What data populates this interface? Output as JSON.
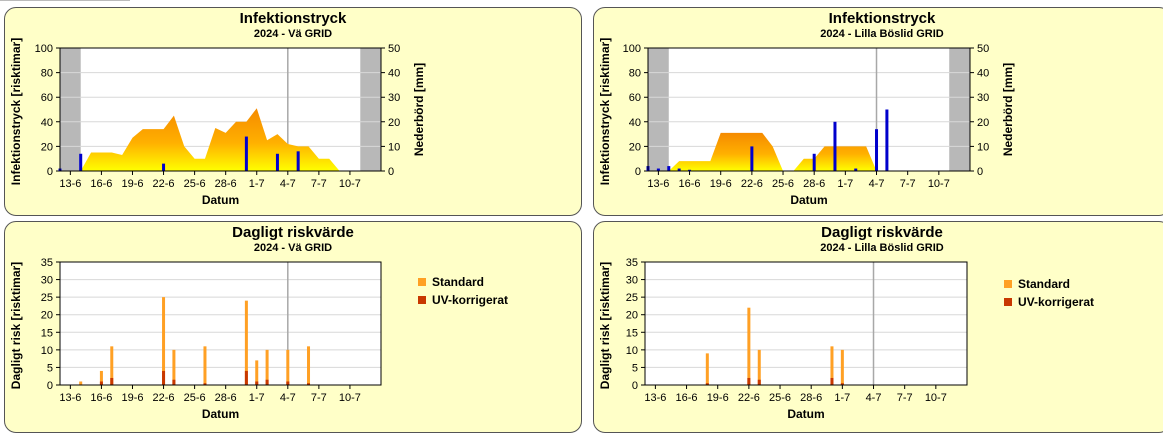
{
  "colors": {
    "panel_bg": "#ffffc8",
    "plot_bg": "#ffffff",
    "grid": "#d8d8d8",
    "dormant": "#b8b8b8",
    "marker": "#a8a8a8",
    "precip": "#0000cc",
    "area_top": "#f58a00",
    "area_bottom": "#ffff00",
    "standard": "#ffa024",
    "uv": "#c83800"
  },
  "charts": [
    {
      "id": "infek-va",
      "title": "Infektionstryck",
      "subtitle": "2024 - Vä GRID",
      "xlabel": "Datum",
      "ylabel": "Infektionstryck [risktimar]",
      "y2label": "Nederbörd [mm]"
    },
    {
      "id": "infek-lilla",
      "title": "Infektionstryck",
      "subtitle": "2024 - Lilla Böslid GRID",
      "xlabel": "Datum",
      "ylabel": "Infektionstryck [risktimar]",
      "y2label": "Nederbörd [mm]"
    },
    {
      "id": "risk-va",
      "title": "Dagligt riskvärde",
      "subtitle": "2024 - Vä GRID",
      "xlabel": "Datum",
      "ylabel": "Dagligt risk [risktimar]",
      "legend": [
        "Standard",
        "UV-korrigerat"
      ]
    },
    {
      "id": "risk-lilla",
      "title": "Dagligt riskvärde",
      "subtitle": "2024 - Lilla Böslid GRID",
      "xlabel": "Datum",
      "ylabel": "Dagligt risk [risktimar]",
      "legend": [
        "Standard",
        "UV-korrigerat"
      ]
    }
  ],
  "chart_data": [
    {
      "type": "area",
      "title": "Infektionstryck",
      "subtitle": "2024 - Vä GRID",
      "xlabel": "Datum",
      "ylabel": "Infektionstryck [risktimar]",
      "y2label": "Nederbörd [mm]",
      "x_start": "2024-06-12",
      "x_end": "2024-07-13",
      "x_ticks": [
        "13-6",
        "16-6",
        "19-6",
        "22-6",
        "25-6",
        "28-6",
        "1-7",
        "4-7",
        "7-7",
        "10-7"
      ],
      "ylim": [
        0,
        100
      ],
      "y_ticks": [
        0,
        20,
        40,
        60,
        80,
        100
      ],
      "y2lim": [
        0,
        50
      ],
      "y2_ticks": [
        0,
        10,
        20,
        30,
        40,
        50
      ],
      "grid": true,
      "dormant_periods": [
        [
          "2024-06-12",
          "2024-06-14"
        ],
        [
          "2024-07-11",
          "2024-07-13"
        ]
      ],
      "today_marker": "2024-07-04",
      "infection_pressure": {
        "dates": [
          "2024-06-14",
          "2024-06-15",
          "2024-06-17",
          "2024-06-18",
          "2024-06-19",
          "2024-06-20",
          "2024-06-21",
          "2024-06-22",
          "2024-06-23",
          "2024-06-24",
          "2024-06-25",
          "2024-06-26",
          "2024-06-27",
          "2024-06-28",
          "2024-06-29",
          "2024-06-30",
          "2024-07-01",
          "2024-07-02",
          "2024-07-03",
          "2024-07-04",
          "2024-07-05",
          "2024-07-06",
          "2024-07-07",
          "2024-07-08",
          "2024-07-09"
        ],
        "values": [
          0,
          15,
          15,
          13,
          27,
          34,
          34,
          34,
          45,
          20,
          10,
          10,
          35,
          31,
          40,
          40,
          51,
          25,
          30,
          22,
          20,
          20,
          10,
          10,
          0
        ]
      },
      "precipitation": {
        "dates": [
          "2024-06-12",
          "2024-06-14",
          "2024-06-22",
          "2024-06-30",
          "2024-07-03",
          "2024-07-05"
        ],
        "values": [
          1,
          7,
          3,
          14,
          7,
          8
        ]
      }
    },
    {
      "type": "area",
      "title": "Infektionstryck",
      "subtitle": "2024 - Lilla Böslid GRID",
      "xlabel": "Datum",
      "ylabel": "Infektionstryck [risktimar]",
      "y2label": "Nederbörd [mm]",
      "x_start": "2024-06-12",
      "x_end": "2024-07-13",
      "x_ticks": [
        "13-6",
        "16-6",
        "19-6",
        "22-6",
        "25-6",
        "28-6",
        "1-7",
        "4-7",
        "7-7",
        "10-7"
      ],
      "ylim": [
        0,
        100
      ],
      "y_ticks": [
        0,
        20,
        40,
        60,
        80,
        100
      ],
      "y2lim": [
        0,
        50
      ],
      "y2_ticks": [
        0,
        10,
        20,
        30,
        40,
        50
      ],
      "grid": true,
      "dormant_periods": [
        [
          "2024-06-12",
          "2024-06-14"
        ],
        [
          "2024-07-11",
          "2024-07-13"
        ]
      ],
      "today_marker": "2024-07-04",
      "infection_pressure": {
        "dates": [
          "2024-06-14",
          "2024-06-15",
          "2024-06-17",
          "2024-06-18",
          "2024-06-19",
          "2024-06-20",
          "2024-06-21",
          "2024-06-22",
          "2024-06-23",
          "2024-06-24",
          "2024-06-25",
          "2024-06-26",
          "2024-06-27",
          "2024-06-28",
          "2024-06-29",
          "2024-06-30",
          "2024-07-01",
          "2024-07-02",
          "2024-07-03",
          "2024-07-04"
        ],
        "values": [
          0,
          8,
          8,
          8,
          31,
          31,
          31,
          31,
          31,
          20,
          0,
          0,
          10,
          10,
          20,
          20,
          20,
          20,
          20,
          0
        ]
      },
      "precipitation": {
        "dates": [
          "2024-06-12",
          "2024-06-13",
          "2024-06-14",
          "2024-06-15",
          "2024-06-16",
          "2024-06-22",
          "2024-06-28",
          "2024-06-30",
          "2024-07-02",
          "2024-07-04",
          "2024-07-05"
        ],
        "values": [
          2,
          1,
          2,
          1,
          0.5,
          10,
          7,
          20,
          1,
          17,
          25
        ]
      }
    },
    {
      "type": "bar",
      "title": "Dagligt riskvärde",
      "subtitle": "2024 - Vä GRID",
      "xlabel": "Datum",
      "ylabel": "Dagligt risk [risktimar]",
      "x_start": "2024-06-12",
      "x_end": "2024-07-13",
      "x_ticks": [
        "13-6",
        "16-6",
        "19-6",
        "22-6",
        "25-6",
        "28-6",
        "1-7",
        "4-7",
        "7-7",
        "10-7"
      ],
      "ylim": [
        0,
        35
      ],
      "y_ticks": [
        0,
        5,
        10,
        15,
        20,
        25,
        30,
        35
      ],
      "grid": true,
      "today_marker": "2024-07-04",
      "legend_position": "right",
      "categories": [
        "2024-06-14",
        "2024-06-16",
        "2024-06-17",
        "2024-06-22",
        "2024-06-23",
        "2024-06-26",
        "2024-06-30",
        "2024-07-01",
        "2024-07-02",
        "2024-07-04",
        "2024-07-06"
      ],
      "series": [
        {
          "name": "Standard",
          "values": [
            1,
            4,
            11,
            25,
            10,
            11,
            24,
            7,
            10,
            10,
            11
          ]
        },
        {
          "name": "UV-korrigerat",
          "values": [
            0,
            1,
            2,
            4,
            1.5,
            0.5,
            4,
            1,
            1.5,
            1,
            0.5
          ]
        }
      ]
    },
    {
      "type": "bar",
      "title": "Dagligt riskvärde",
      "subtitle": "2024 - Lilla Böslid GRID",
      "xlabel": "Datum",
      "ylabel": "Dagligt risk [risktimar]",
      "x_start": "2024-06-12",
      "x_end": "2024-07-13",
      "x_ticks": [
        "13-6",
        "16-6",
        "19-6",
        "22-6",
        "25-6",
        "28-6",
        "1-7",
        "4-7",
        "7-7",
        "10-7"
      ],
      "ylim": [
        0,
        35
      ],
      "y_ticks": [
        0,
        5,
        10,
        15,
        20,
        25,
        30,
        35
      ],
      "grid": true,
      "today_marker": "2024-07-04",
      "legend_position": "right",
      "categories": [
        "2024-06-18",
        "2024-06-22",
        "2024-06-23",
        "2024-06-30",
        "2024-07-01"
      ],
      "series": [
        {
          "name": "Standard",
          "values": [
            9,
            22,
            10,
            11,
            10
          ]
        },
        {
          "name": "UV-korrigerat",
          "values": [
            0.5,
            2,
            1.5,
            2,
            0.5
          ]
        }
      ]
    }
  ]
}
